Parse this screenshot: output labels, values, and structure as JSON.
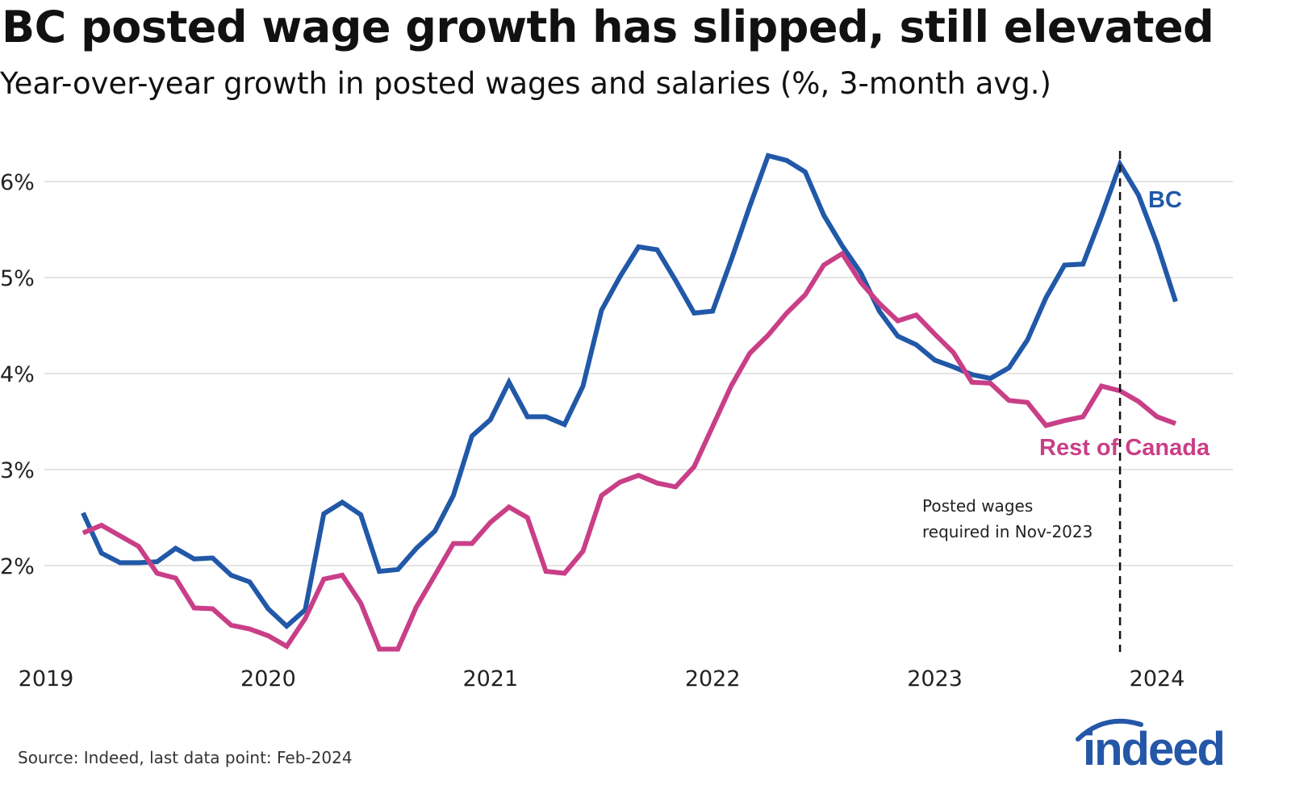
{
  "title": "BC posted wage growth has slipped, still elevated",
  "subtitle": "Year-over-year growth in posted wages and salaries (%, 3-month avg.)",
  "source": "Source: Indeed, last data point: Feb-2024",
  "logo_text": "indeed",
  "chart_data": {
    "type": "line",
    "title": "BC posted wage growth has slipped, still elevated",
    "subtitle": "Year-over-year growth in posted wages and salaries (%, 3-month avg.)",
    "xlabel": "",
    "ylabel": "",
    "x_ticks": [
      "2019",
      "2020",
      "2021",
      "2022",
      "2023",
      "2024"
    ],
    "y_ticks": [
      {
        "value": 2,
        "label": "2%"
      },
      {
        "value": 3,
        "label": "3%"
      },
      {
        "value": 4,
        "label": "4%"
      },
      {
        "value": 5,
        "label": "5%"
      },
      {
        "value": 6,
        "label": "6%"
      }
    ],
    "ylim": [
      1,
      6.3
    ],
    "xlim": [
      "2019-01",
      "2024-04"
    ],
    "grid": "horizontal",
    "legend": "direct labels at line ends",
    "start": "2019-03",
    "frequency": "monthly",
    "series": [
      {
        "name": "BC",
        "color": "#2158a8",
        "values": [
          2.55,
          2.13,
          2.03,
          2.03,
          2.04,
          2.18,
          2.07,
          2.08,
          1.9,
          1.83,
          1.55,
          1.37,
          1.54,
          2.54,
          2.66,
          2.53,
          1.94,
          1.96,
          2.18,
          2.36,
          2.73,
          3.35,
          3.52,
          3.91,
          3.55,
          3.55,
          3.47,
          3.87,
          4.66,
          5.01,
          5.32,
          5.29,
          4.97,
          4.63,
          4.65,
          5.18,
          5.74,
          6.27,
          6.22,
          6.1,
          5.65,
          5.33,
          5.05,
          4.65,
          4.39,
          4.3,
          4.14,
          4.07,
          3.99,
          3.95,
          4.06,
          4.35,
          4.79,
          5.13,
          5.14,
          5.64,
          6.18,
          5.86,
          5.35,
          4.75
        ]
      },
      {
        "name": "Rest of Canada",
        "color": "#c93f87",
        "values": [
          2.34,
          2.42,
          2.31,
          2.2,
          1.92,
          1.87,
          1.56,
          1.55,
          1.38,
          1.34,
          1.27,
          1.16,
          1.45,
          1.86,
          1.9,
          1.61,
          1.13,
          1.13,
          1.57,
          1.9,
          2.23,
          2.23,
          2.45,
          2.61,
          2.5,
          1.94,
          1.92,
          2.15,
          2.73,
          2.87,
          2.94,
          2.86,
          2.82,
          3.03,
          3.45,
          3.87,
          4.21,
          4.4,
          4.63,
          4.82,
          5.13,
          5.25,
          4.95,
          4.73,
          4.55,
          4.61,
          4.41,
          4.22,
          3.91,
          3.9,
          3.72,
          3.7,
          3.46,
          3.51,
          3.55,
          3.87,
          3.82,
          3.71,
          3.55,
          3.48
        ]
      }
    ],
    "annotations": [
      {
        "x": "2023-11",
        "type": "vertical-dashed-line",
        "text_lines": [
          "Posted wages",
          "required in Nov-2023"
        ]
      }
    ]
  }
}
